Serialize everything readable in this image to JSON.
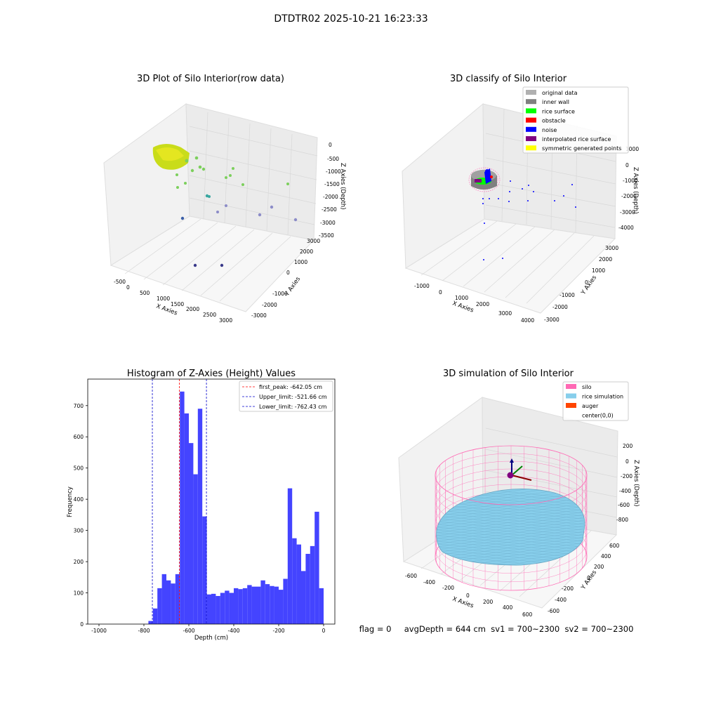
{
  "figure_title": "DTDTR02 2025-10-21 16:23:33",
  "status_line": "flag = 0     avgDepth = 644 cm  sv1 = 700~2300  sv2 = 700~2300",
  "colors": {
    "hist_bar": "#4444ff",
    "first_peak_line": "#ff0000",
    "limit_line": "#0000cc",
    "silo": "#ff69b4",
    "rice_simulation": "#87ceeb",
    "auger": "#ff4500"
  },
  "chart_data": [
    {
      "type": "scatter",
      "subtype": "3d",
      "title": "3D Plot of Silo Interior(row data)",
      "xlabel": "X Axies",
      "ylabel": "Y Axies",
      "zlabel": "Z Axies (Depth)",
      "x_ticks": [
        "-500",
        "0",
        "500",
        "1000",
        "1500",
        "2000",
        "2500",
        "3000"
      ],
      "y_ticks": [
        "-3000",
        "-2000",
        "-1000",
        "0",
        "1000",
        "2000",
        "3000"
      ],
      "z_ticks": [
        "0",
        "-500",
        "-1000",
        "-1500",
        "-2000",
        "-2500",
        "-3000",
        "-3500"
      ]
    },
    {
      "type": "scatter",
      "subtype": "3d",
      "title": "3D classify of Silo Interior",
      "xlabel": "X Axies",
      "ylabel": "Y Axies",
      "zlabel": "Z Axies (Depth)",
      "x_ticks": [
        "-1000",
        "0",
        "1000",
        "2000",
        "3000",
        "4000"
      ],
      "y_ticks": [
        "-3000",
        "-2000",
        "-1000",
        "0",
        "1000",
        "2000",
        "3000"
      ],
      "z_ticks": [
        "1000",
        "0",
        "-1000",
        "-2000",
        "-3000",
        "-4000"
      ],
      "legend": [
        {
          "label": "original data",
          "color": "#b0b0b0"
        },
        {
          "label": "inner wall",
          "color": "#808080"
        },
        {
          "label": "rice surface",
          "color": "#00ff00"
        },
        {
          "label": "obstacle",
          "color": "#ff0000"
        },
        {
          "label": "noise",
          "color": "#0000ff"
        },
        {
          "label": "interpolated rice surface",
          "color": "#800080"
        },
        {
          "label": "symmetric generated points",
          "color": "#ffff00"
        }
      ],
      "legend_position": "top-right"
    },
    {
      "type": "bar",
      "subtype": "histogram",
      "title": "Histogram of Z-Axies (Height) Values",
      "xlabel": "Depth (cm)",
      "ylabel": "Frequency",
      "xlim": [
        -1050,
        50
      ],
      "ylim": [
        0,
        785
      ],
      "x_ticks": [
        -1000,
        -800,
        -600,
        -400,
        -200,
        0
      ],
      "y_ticks": [
        0,
        100,
        200,
        300,
        400,
        500,
        600,
        700
      ],
      "bin_start": -780,
      "bin_width": 20,
      "values": [
        10,
        50,
        115,
        160,
        140,
        130,
        160,
        745,
        675,
        580,
        480,
        690,
        345,
        95,
        97,
        90,
        100,
        107,
        100,
        115,
        112,
        115,
        125,
        120,
        120,
        140,
        128,
        122,
        120,
        110,
        145,
        435,
        275,
        255,
        170,
        225,
        250,
        360,
        115
      ],
      "vlines": [
        {
          "label": "first_peak: -642.05 cm",
          "x": -642.05,
          "color": "#ff0000"
        },
        {
          "label": "Upper_limit: -521.66 cm",
          "x": -521.66,
          "color": "#0000cc"
        },
        {
          "label": "Lower_limit: -762.43 cm",
          "x": -762.43,
          "color": "#0000cc"
        }
      ],
      "legend_position": "top-right"
    },
    {
      "type": "scatter",
      "subtype": "3d-surface",
      "title": "3D simulation of Silo Interior",
      "xlabel": "X Axies",
      "ylabel": "Y Axies",
      "zlabel": "Z Axies (Depth)",
      "x_ticks": [
        "-600",
        "-400",
        "-200",
        "0",
        "200",
        "400",
        "600"
      ],
      "y_ticks": [
        "-600",
        "-400",
        "-200",
        "0",
        "200",
        "400",
        "600"
      ],
      "z_ticks": [
        "200",
        "0",
        "-200",
        "-400",
        "-600",
        "-800"
      ],
      "legend": [
        {
          "label": "silo",
          "color": "#ff69b4"
        },
        {
          "label": "rice simulation",
          "color": "#87ceeb"
        },
        {
          "label": "auger",
          "color": "#ff4500"
        },
        {
          "label": "center(0,0)",
          "color": ""
        }
      ],
      "legend_position": "top-right"
    }
  ]
}
